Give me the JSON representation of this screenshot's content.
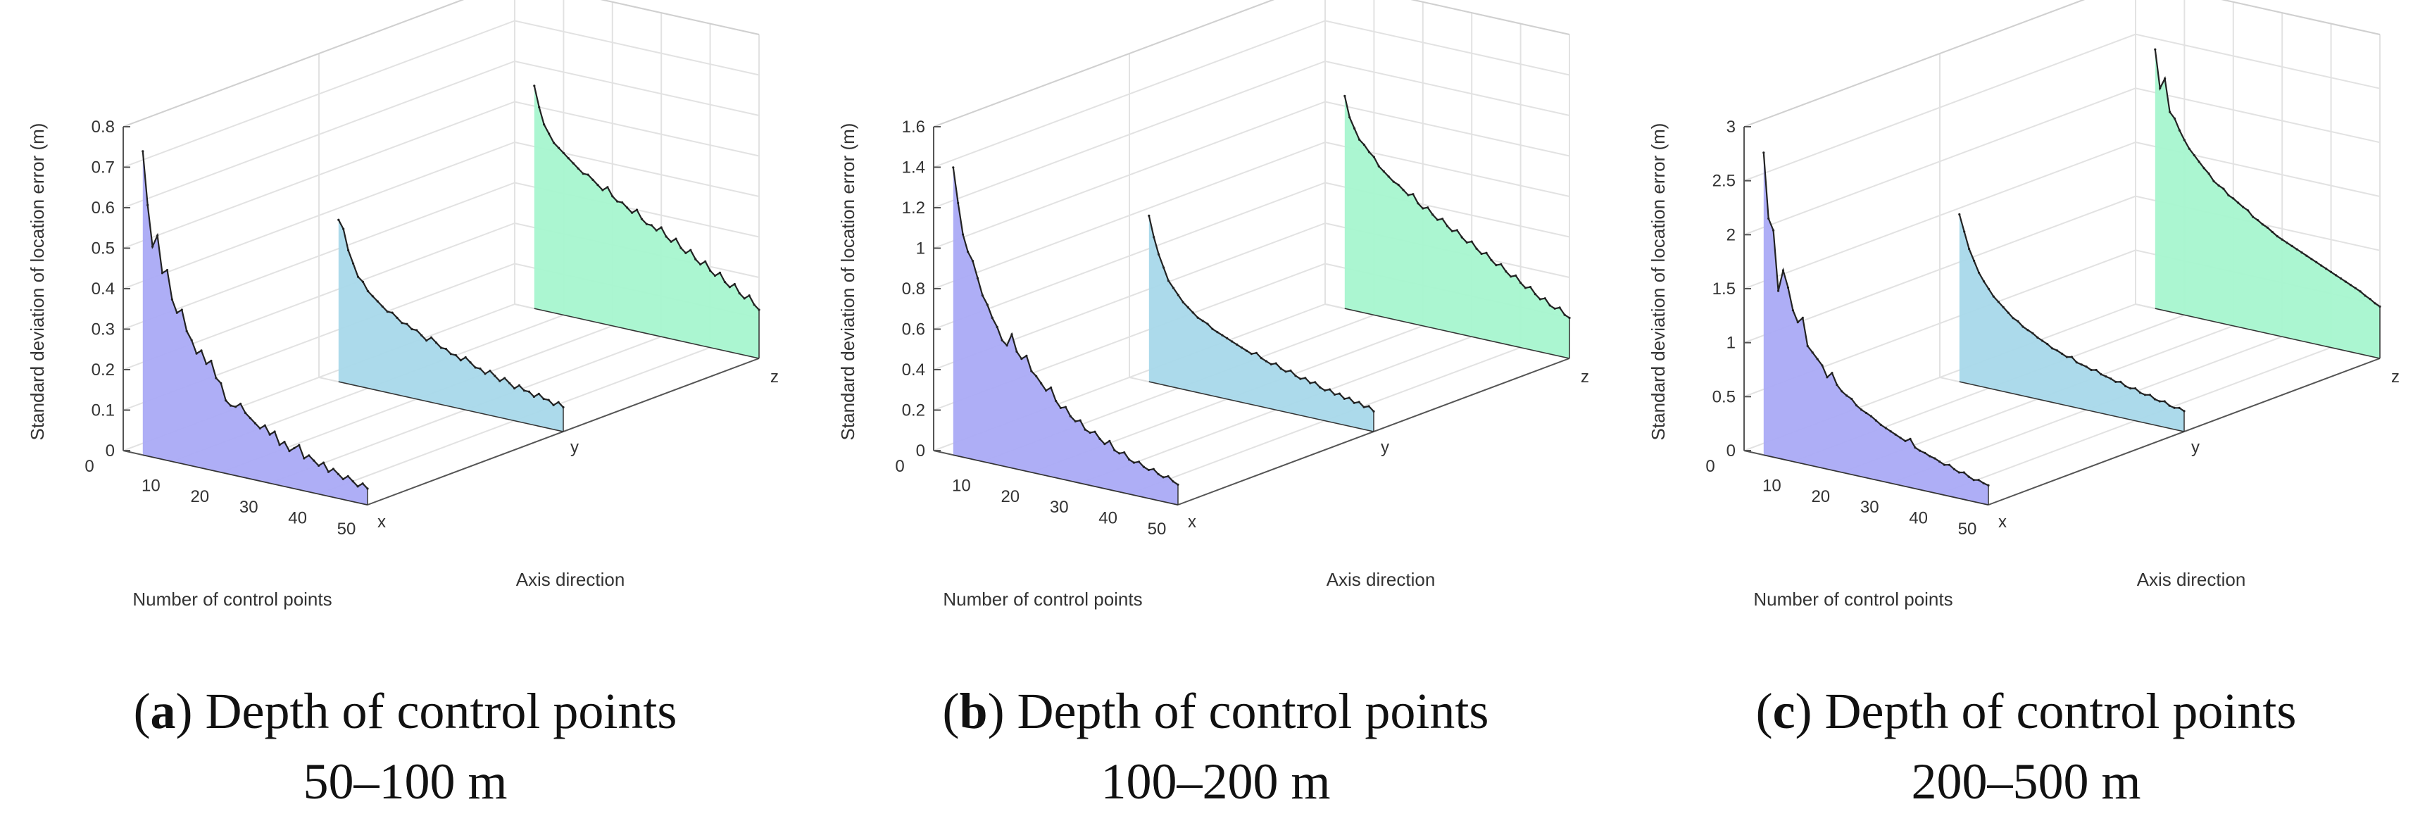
{
  "figure": {
    "panels": [
      {
        "caption_letter": "a",
        "caption_text": " Depth of control points",
        "caption_line2": "50–100 m",
        "color_x": "#aaaaf5",
        "color_y": "#a8d8ea",
        "color_z": "#a6f5cf"
      },
      {
        "caption_letter": "b",
        "caption_text": " Depth of control points",
        "caption_line2": "100–200 m",
        "color_x": "#aaaaf5",
        "color_y": "#a8d8ea",
        "color_z": "#a6f5cf"
      },
      {
        "caption_letter": "c",
        "caption_text": " Depth of control points",
        "caption_line2": "200–500 m",
        "color_x": "#aaaaf5",
        "color_y": "#a8d8ea",
        "color_z": "#a6f5cf"
      }
    ]
  },
  "chart_data": [
    {
      "type": "3d-area",
      "title": "(a) Depth of control points 50–100 m",
      "zlabel": "Standard deviation of location error (m)",
      "xlabel": "Number  of control points",
      "ylabel": "Axis direction",
      "x_ticks": [
        "0",
        "10",
        "20",
        "30",
        "40",
        "50"
      ],
      "xlim": [
        0,
        50
      ],
      "z_ticks": [
        "0",
        "0.1",
        "0.2",
        "0.3",
        "0.4",
        "0.5",
        "0.6",
        "0.7",
        "0.8"
      ],
      "zlim": [
        0,
        0.8
      ],
      "categories": [
        "x",
        "y",
        "z"
      ],
      "series": [
        {
          "name": "x",
          "x": [
            4,
            5,
            6,
            7,
            8,
            9,
            10,
            11,
            12,
            13,
            14,
            15,
            16,
            17,
            18,
            19,
            20,
            21,
            22,
            23,
            24,
            25,
            26,
            27,
            28,
            29,
            30,
            31,
            32,
            33,
            34,
            35,
            36,
            37,
            38,
            39,
            40,
            41,
            42,
            43,
            44,
            45,
            46,
            47,
            48,
            49,
            50
          ],
          "values": [
            0.75,
            0.62,
            0.52,
            0.55,
            0.46,
            0.47,
            0.4,
            0.37,
            0.38,
            0.33,
            0.31,
            0.28,
            0.29,
            0.26,
            0.27,
            0.23,
            0.22,
            0.18,
            0.17,
            0.17,
            0.18,
            0.16,
            0.15,
            0.14,
            0.13,
            0.14,
            0.12,
            0.13,
            0.1,
            0.11,
            0.09,
            0.1,
            0.11,
            0.08,
            0.09,
            0.08,
            0.07,
            0.08,
            0.06,
            0.07,
            0.06,
            0.05,
            0.06,
            0.05,
            0.04,
            0.05,
            0.04
          ]
        },
        {
          "name": "y",
          "x": [
            4,
            5,
            6,
            7,
            8,
            9,
            10,
            11,
            12,
            13,
            14,
            15,
            16,
            17,
            18,
            19,
            20,
            21,
            22,
            23,
            24,
            25,
            26,
            27,
            28,
            29,
            30,
            31,
            32,
            33,
            34,
            35,
            36,
            37,
            38,
            39,
            40,
            41,
            42,
            43,
            44,
            45,
            46,
            47,
            48,
            49,
            50
          ],
          "values": [
            0.4,
            0.38,
            0.33,
            0.3,
            0.27,
            0.26,
            0.24,
            0.23,
            0.22,
            0.21,
            0.2,
            0.2,
            0.19,
            0.18,
            0.18,
            0.17,
            0.17,
            0.16,
            0.15,
            0.16,
            0.15,
            0.14,
            0.14,
            0.13,
            0.13,
            0.12,
            0.13,
            0.12,
            0.11,
            0.11,
            0.1,
            0.11,
            0.1,
            0.09,
            0.1,
            0.09,
            0.08,
            0.09,
            0.08,
            0.08,
            0.07,
            0.08,
            0.07,
            0.07,
            0.06,
            0.07,
            0.06
          ]
        },
        {
          "name": "z",
          "x": [
            4,
            5,
            6,
            7,
            8,
            9,
            10,
            11,
            12,
            13,
            14,
            15,
            16,
            17,
            18,
            19,
            20,
            21,
            22,
            23,
            24,
            25,
            26,
            27,
            28,
            29,
            30,
            31,
            32,
            33,
            34,
            35,
            36,
            37,
            38,
            39,
            40,
            41,
            42,
            43,
            44,
            45,
            46,
            47,
            48,
            49,
            50
          ],
          "values": [
            0.55,
            0.5,
            0.46,
            0.44,
            0.42,
            0.41,
            0.4,
            0.39,
            0.38,
            0.37,
            0.36,
            0.36,
            0.35,
            0.34,
            0.33,
            0.34,
            0.32,
            0.31,
            0.31,
            0.3,
            0.29,
            0.3,
            0.28,
            0.27,
            0.27,
            0.26,
            0.27,
            0.25,
            0.24,
            0.25,
            0.23,
            0.22,
            0.23,
            0.21,
            0.2,
            0.21,
            0.19,
            0.18,
            0.19,
            0.17,
            0.16,
            0.17,
            0.15,
            0.14,
            0.15,
            0.13,
            0.12
          ]
        }
      ]
    },
    {
      "type": "3d-area",
      "title": "(b) Depth of control points 100–200 m",
      "zlabel": "Standard deviation of location error (m)",
      "xlabel": "Number  of control points",
      "ylabel": "Axis direction",
      "x_ticks": [
        "0",
        "10",
        "20",
        "30",
        "40",
        "50"
      ],
      "xlim": [
        0,
        50
      ],
      "z_ticks": [
        "0",
        "0.2",
        "0.4",
        "0.6",
        "0.8",
        "1",
        "1.2",
        "1.4",
        "1.6"
      ],
      "zlim": [
        0,
        1.6
      ],
      "categories": [
        "x",
        "y",
        "z"
      ],
      "series": [
        {
          "name": "x",
          "x": [
            4,
            5,
            6,
            7,
            8,
            9,
            10,
            11,
            12,
            13,
            14,
            15,
            16,
            17,
            18,
            19,
            20,
            21,
            22,
            23,
            24,
            25,
            26,
            27,
            28,
            29,
            30,
            31,
            32,
            33,
            34,
            35,
            36,
            37,
            38,
            39,
            40,
            41,
            42,
            43,
            44,
            45,
            46,
            47,
            48,
            49,
            50
          ],
          "values": [
            1.42,
            1.25,
            1.1,
            1.02,
            0.98,
            0.9,
            0.82,
            0.78,
            0.72,
            0.68,
            0.62,
            0.6,
            0.66,
            0.58,
            0.55,
            0.57,
            0.5,
            0.48,
            0.45,
            0.42,
            0.44,
            0.38,
            0.35,
            0.36,
            0.32,
            0.3,
            0.31,
            0.27,
            0.26,
            0.27,
            0.24,
            0.22,
            0.24,
            0.2,
            0.19,
            0.2,
            0.17,
            0.16,
            0.17,
            0.15,
            0.14,
            0.15,
            0.13,
            0.12,
            0.13,
            0.11,
            0.1
          ]
        },
        {
          "name": "y",
          "x": [
            4,
            5,
            6,
            7,
            8,
            9,
            10,
            11,
            12,
            13,
            14,
            15,
            16,
            17,
            18,
            19,
            20,
            21,
            22,
            23,
            24,
            25,
            26,
            27,
            28,
            29,
            30,
            31,
            32,
            33,
            34,
            35,
            36,
            37,
            38,
            39,
            40,
            41,
            42,
            43,
            44,
            45,
            46,
            47,
            48,
            49,
            50
          ],
          "values": [
            0.82,
            0.72,
            0.64,
            0.58,
            0.52,
            0.49,
            0.46,
            0.43,
            0.41,
            0.39,
            0.37,
            0.36,
            0.35,
            0.33,
            0.32,
            0.31,
            0.3,
            0.29,
            0.28,
            0.27,
            0.26,
            0.25,
            0.26,
            0.24,
            0.23,
            0.22,
            0.23,
            0.21,
            0.2,
            0.21,
            0.19,
            0.18,
            0.19,
            0.17,
            0.18,
            0.16,
            0.15,
            0.16,
            0.14,
            0.15,
            0.13,
            0.14,
            0.12,
            0.13,
            0.11,
            0.12,
            0.1
          ]
        },
        {
          "name": "z",
          "x": [
            4,
            5,
            6,
            7,
            8,
            9,
            10,
            11,
            12,
            13,
            14,
            15,
            16,
            17,
            18,
            19,
            20,
            21,
            22,
            23,
            24,
            25,
            26,
            27,
            28,
            29,
            30,
            31,
            32,
            33,
            34,
            35,
            36,
            37,
            38,
            39,
            40,
            41,
            42,
            43,
            44,
            45,
            46,
            47,
            48,
            49,
            50
          ],
          "values": [
            1.05,
            0.95,
            0.9,
            0.85,
            0.83,
            0.8,
            0.78,
            0.74,
            0.72,
            0.7,
            0.68,
            0.67,
            0.65,
            0.63,
            0.64,
            0.6,
            0.58,
            0.59,
            0.56,
            0.54,
            0.55,
            0.52,
            0.5,
            0.51,
            0.48,
            0.46,
            0.47,
            0.44,
            0.42,
            0.43,
            0.4,
            0.38,
            0.39,
            0.36,
            0.34,
            0.35,
            0.32,
            0.3,
            0.31,
            0.28,
            0.26,
            0.27,
            0.24,
            0.23,
            0.24,
            0.21,
            0.2
          ]
        }
      ]
    },
    {
      "type": "3d-area",
      "title": "(c) Depth of control points 200–500 m",
      "zlabel": "Standard deviation of location error (m)",
      "xlabel": "Number  of control points",
      "ylabel": "Axis direction",
      "x_ticks": [
        "0",
        "10",
        "20",
        "30",
        "40",
        "50"
      ],
      "xlim": [
        0,
        50
      ],
      "z_ticks": [
        "0",
        "0.5",
        "1",
        "1.5",
        "2",
        "2.5",
        "3"
      ],
      "zlim": [
        0,
        3
      ],
      "categories": [
        "x",
        "y",
        "z"
      ],
      "series": [
        {
          "name": "x",
          "x": [
            4,
            5,
            6,
            7,
            8,
            9,
            10,
            11,
            12,
            13,
            14,
            15,
            16,
            17,
            18,
            19,
            20,
            21,
            22,
            23,
            24,
            25,
            26,
            27,
            28,
            29,
            30,
            31,
            32,
            33,
            34,
            35,
            36,
            37,
            38,
            39,
            40,
            41,
            42,
            43,
            44,
            45,
            46,
            47,
            48,
            49,
            50
          ],
          "values": [
            2.8,
            2.2,
            2.1,
            1.55,
            1.75,
            1.6,
            1.4,
            1.3,
            1.35,
            1.1,
            1.05,
            1.0,
            0.95,
            0.85,
            0.9,
            0.8,
            0.75,
            0.72,
            0.7,
            0.65,
            0.62,
            0.6,
            0.58,
            0.55,
            0.52,
            0.5,
            0.48,
            0.46,
            0.44,
            0.42,
            0.45,
            0.38,
            0.36,
            0.35,
            0.33,
            0.32,
            0.3,
            0.28,
            0.29,
            0.26,
            0.24,
            0.25,
            0.22,
            0.2,
            0.21,
            0.19,
            0.18
          ]
        },
        {
          "name": "y",
          "x": [
            4,
            5,
            6,
            7,
            8,
            9,
            10,
            11,
            12,
            13,
            14,
            15,
            16,
            17,
            18,
            19,
            20,
            21,
            22,
            23,
            24,
            25,
            26,
            27,
            28,
            29,
            30,
            31,
            32,
            33,
            34,
            35,
            36,
            37,
            38,
            39,
            40,
            41,
            42,
            43,
            44,
            45,
            46,
            47,
            48,
            49,
            50
          ],
          "values": [
            1.55,
            1.4,
            1.25,
            1.15,
            1.05,
            0.98,
            0.92,
            0.86,
            0.82,
            0.78,
            0.74,
            0.7,
            0.68,
            0.64,
            0.62,
            0.6,
            0.57,
            0.55,
            0.53,
            0.5,
            0.49,
            0.47,
            0.45,
            0.46,
            0.42,
            0.41,
            0.4,
            0.38,
            0.39,
            0.36,
            0.35,
            0.34,
            0.32,
            0.33,
            0.3,
            0.29,
            0.3,
            0.27,
            0.26,
            0.27,
            0.24,
            0.23,
            0.24,
            0.21,
            0.2,
            0.21,
            0.19
          ]
        },
        {
          "name": "z",
          "x": [
            4,
            5,
            6,
            7,
            8,
            9,
            10,
            11,
            12,
            13,
            14,
            15,
            16,
            17,
            18,
            19,
            20,
            21,
            22,
            23,
            24,
            25,
            26,
            27,
            28,
            29,
            30,
            31,
            32,
            33,
            34,
            35,
            36,
            37,
            38,
            39,
            40,
            41,
            42,
            43,
            44,
            45,
            46,
            47,
            48,
            49,
            50
          ],
          "values": [
            2.4,
            2.05,
            2.15,
            1.85,
            1.8,
            1.7,
            1.62,
            1.55,
            1.5,
            1.45,
            1.4,
            1.36,
            1.3,
            1.27,
            1.25,
            1.2,
            1.18,
            1.15,
            1.12,
            1.1,
            1.05,
            1.03,
            1.0,
            0.98,
            0.95,
            0.92,
            0.9,
            0.88,
            0.86,
            0.84,
            0.82,
            0.8,
            0.78,
            0.76,
            0.74,
            0.72,
            0.7,
            0.68,
            0.66,
            0.64,
            0.62,
            0.6,
            0.58,
            0.55,
            0.53,
            0.5,
            0.48
          ]
        }
      ]
    }
  ]
}
